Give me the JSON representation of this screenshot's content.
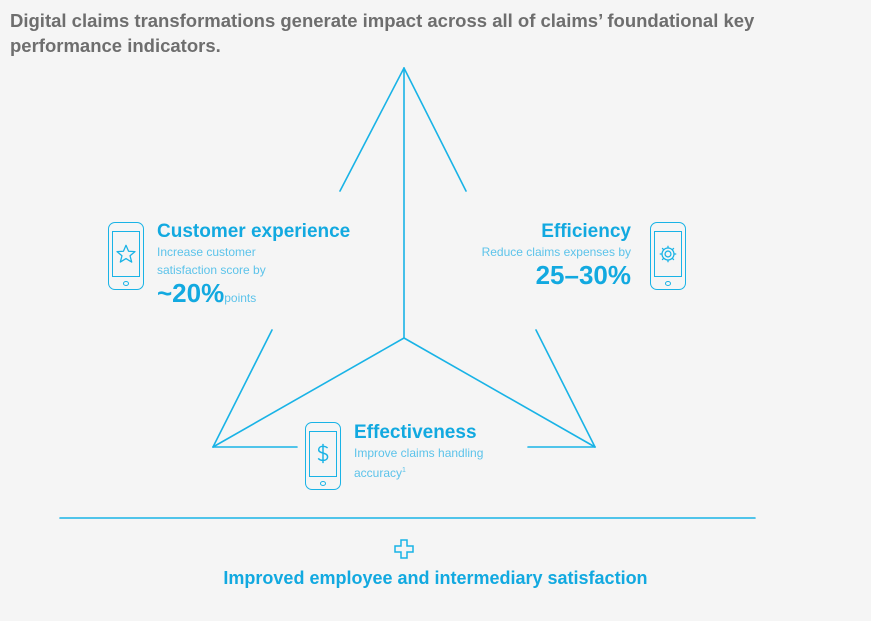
{
  "title": "Digital claims transformations generate impact across all of claims’ foundational key performance indicators.",
  "colors": {
    "accent": "#12a9e0",
    "light_accent": "#5cc3ea",
    "title_gray": "#6e6e6e"
  },
  "customer": {
    "heading": "Customer experience",
    "desc_line1": "Increase customer",
    "desc_line2": "satisfaction score by",
    "value": "~20%",
    "unit": "points",
    "icon": "star-phone-icon"
  },
  "efficiency": {
    "heading": "Efficiency",
    "desc": "Reduce claims expenses by",
    "value": "25–30%",
    "icon": "gear-phone-icon"
  },
  "effectiveness": {
    "heading": "Effectiveness",
    "desc_line1": "Improve claims handling",
    "desc_line2": "accuracy",
    "footnote": "1",
    "icon": "dollar-phone-icon"
  },
  "bottom": {
    "text": "Improved employee and intermediary satisfaction",
    "icon": "plus-icon"
  }
}
